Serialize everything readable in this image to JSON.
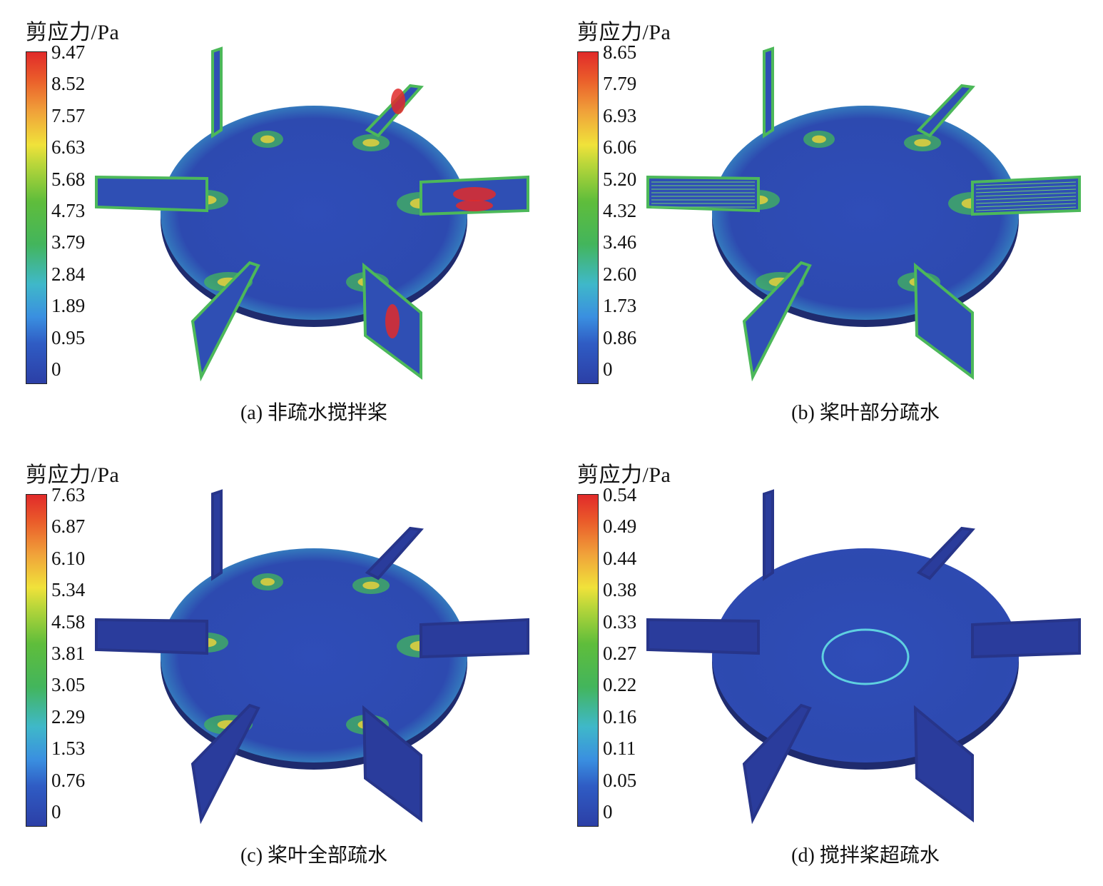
{
  "panels": [
    {
      "unit_title": "剪应力/Pa",
      "ticks": [
        "9.47",
        "8.52",
        "7.57",
        "6.63",
        "5.68",
        "4.73",
        "3.79",
        "2.84",
        "1.89",
        "0.95",
        "0"
      ],
      "caption": "(a) 非疏水搅拌桨",
      "variant": "hot"
    },
    {
      "unit_title": "剪应力/Pa",
      "ticks": [
        "8.65",
        "7.79",
        "6.93",
        "6.06",
        "5.20",
        "4.32",
        "3.46",
        "2.60",
        "1.73",
        "0.86",
        "0"
      ],
      "caption": "(b) 桨叶部分疏水",
      "variant": "striped"
    },
    {
      "unit_title": "剪应力/Pa",
      "ticks": [
        "7.63",
        "6.87",
        "6.10",
        "5.34",
        "4.58",
        "3.81",
        "3.05",
        "2.29",
        "1.53",
        "0.76",
        "0"
      ],
      "caption": "(c) 桨叶全部疏水",
      "variant": "coldblades"
    },
    {
      "unit_title": "剪应力/Pa",
      "ticks": [
        "0.54",
        "0.49",
        "0.44",
        "0.38",
        "0.33",
        "0.27",
        "0.22",
        "0.16",
        "0.11",
        "0.05",
        "0"
      ],
      "caption": "(d) 搅拌桨超疏水",
      "variant": "cold"
    }
  ],
  "colors": {
    "low": "#2c3fa6",
    "mid": "#43b55c",
    "high": "#e12a2a",
    "blade_dark": "#232f78"
  }
}
